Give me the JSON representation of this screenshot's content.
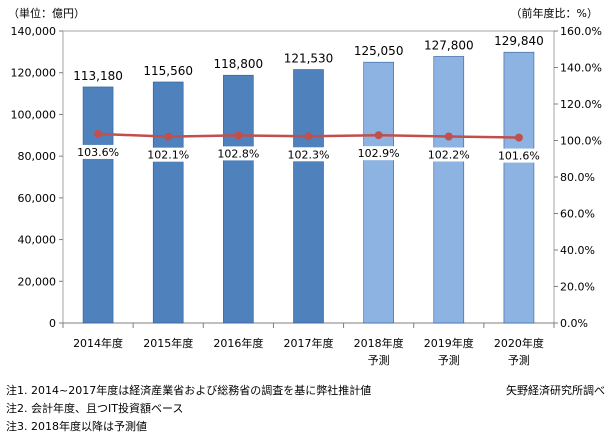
{
  "chart_data": {
    "type": "bar",
    "y_unit_label": "（単位：億円）",
    "y2_unit_label": "（前年度比：%）",
    "categories": [
      [
        "2014年度"
      ],
      [
        "2015年度"
      ],
      [
        "2016年度"
      ],
      [
        "2017年度"
      ],
      [
        "2018年度",
        "予測"
      ],
      [
        "2019年度",
        "予測"
      ],
      [
        "2020年度",
        "予測"
      ]
    ],
    "bar_values": [
      113180,
      115560,
      118800,
      121530,
      125050,
      127800,
      129840
    ],
    "bar_labels": [
      "113,180",
      "115,560",
      "118,800",
      "121,530",
      "125,050",
      "127,800",
      "129,840"
    ],
    "forecast_flags": [
      false,
      false,
      false,
      false,
      true,
      true,
      true
    ],
    "line_values": [
      103.6,
      102.1,
      102.8,
      102.3,
      102.9,
      102.2,
      101.6
    ],
    "line_labels": [
      "103.6%",
      "102.1%",
      "102.8%",
      "102.3%",
      "102.9%",
      "102.2%",
      "101.6%"
    ],
    "ylim": [
      0,
      140000
    ],
    "y_ticks": [
      0,
      20000,
      40000,
      60000,
      80000,
      100000,
      120000,
      140000
    ],
    "y_tick_labels": [
      "0",
      "20,000",
      "40,000",
      "60,000",
      "80,000",
      "100,000",
      "120,000",
      "140,000"
    ],
    "y2lim": [
      0,
      160
    ],
    "y2_ticks": [
      0,
      20,
      40,
      60,
      80,
      100,
      120,
      140,
      160
    ],
    "y2_tick_labels": [
      "0.0%",
      "20.0%",
      "40.0%",
      "60.0%",
      "80.0%",
      "100.0%",
      "120.0%",
      "140.0%",
      "160.0%"
    ],
    "grid": false,
    "colors": {
      "actual_bar": "#4f81bd",
      "forecast_bar": "#8db3e2",
      "bar_edge": "#2f5f99",
      "line": "#c0504d"
    }
  },
  "notes": [
    "注1. 2014~2017年度は経済産業省および総務省の調査を基に弊社推計値",
    "注2. 会計年度、且つIT投資額ベース",
    "注3. 2018年度以降は予測値"
  ],
  "source": "矢野経済研究所調べ"
}
